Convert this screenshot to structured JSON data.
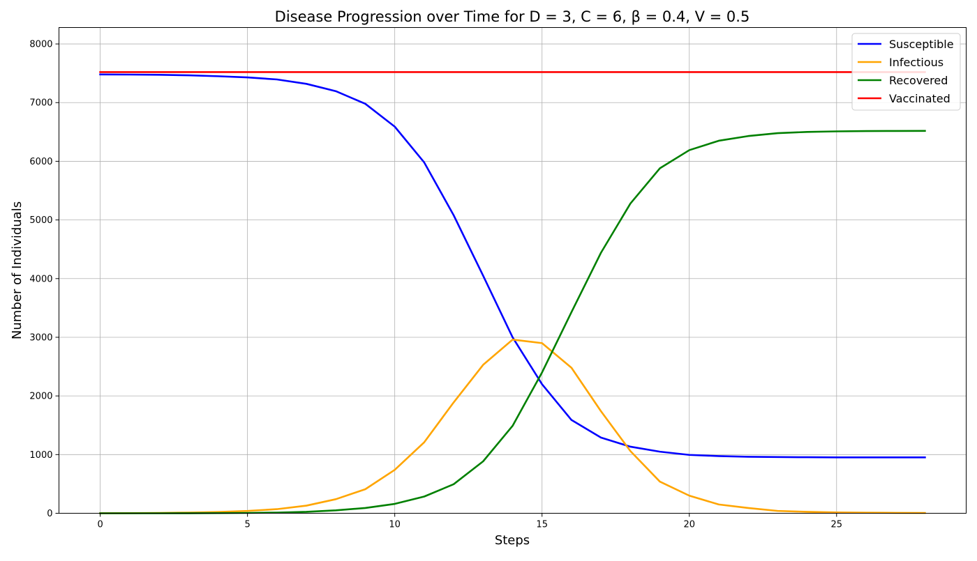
{
  "chart_data": {
    "type": "line",
    "title": "Disease Progression over Time for D = 3, C = 6, β = 0.4, V = 0.5",
    "xlabel": "Steps",
    "ylabel": "Number of Individuals",
    "xlim": [
      -1.4,
      29.4
    ],
    "ylim": [
      0,
      8280
    ],
    "xticks": [
      0,
      5,
      10,
      15,
      20,
      25
    ],
    "yticks": [
      0,
      1000,
      2000,
      3000,
      4000,
      5000,
      6000,
      7000,
      8000
    ],
    "grid": true,
    "legend_position": "top-right",
    "x": [
      0,
      1,
      2,
      3,
      4,
      5,
      6,
      7,
      8,
      9,
      10,
      11,
      12,
      13,
      14,
      15,
      16,
      17,
      18,
      19,
      20,
      21,
      22,
      23,
      24,
      25,
      26,
      27,
      28
    ],
    "series": [
      {
        "name": "Susceptible",
        "color": "#0000ff",
        "values": [
          7480,
          7478,
          7474,
          7465,
          7450,
          7430,
          7395,
          7320,
          7195,
          6980,
          6590,
          5980,
          5080,
          4050,
          3000,
          2200,
          1590,
          1290,
          1135,
          1050,
          995,
          975,
          963,
          958,
          955,
          953,
          953,
          953,
          953
        ]
      },
      {
        "name": "Infectious",
        "color": "#ffa500",
        "values": [
          1,
          2,
          5,
          12,
          22,
          40,
          70,
          130,
          240,
          410,
          740,
          1210,
          1890,
          2530,
          2960,
          2900,
          2480,
          1740,
          1060,
          540,
          300,
          150,
          90,
          40,
          25,
          15,
          10,
          7,
          5
        ]
      },
      {
        "name": "Recovered",
        "color": "#008000",
        "values": [
          0,
          0,
          0,
          1,
          3,
          6,
          12,
          25,
          50,
          90,
          160,
          285,
          495,
          885,
          1490,
          2400,
          3430,
          4440,
          5280,
          5880,
          6190,
          6350,
          6430,
          6480,
          6500,
          6510,
          6515,
          6517,
          6518
        ]
      },
      {
        "name": "Vaccinated",
        "color": "#ff0000",
        "values": [
          7520,
          7520,
          7520,
          7520,
          7520,
          7520,
          7520,
          7520,
          7520,
          7520,
          7520,
          7520,
          7520,
          7520,
          7520,
          7520,
          7520,
          7520,
          7520,
          7520,
          7520,
          7520,
          7520,
          7520,
          7520,
          7520,
          7520,
          7520,
          7520
        ]
      }
    ]
  }
}
